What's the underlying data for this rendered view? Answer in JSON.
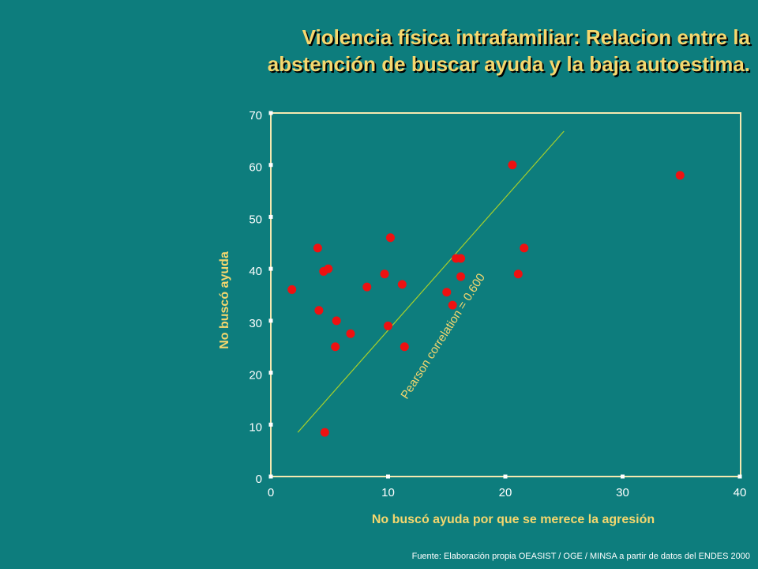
{
  "title": {
    "line1": "Violencia física intrafamiliar: Relacion entre la",
    "line2": "abstención de buscar ayuda y la baja autoestima."
  },
  "source": "Fuente: Elaboración propia OEASIST / OGE / MINSA a partir de datos del ENDES 2000",
  "chart_data": {
    "type": "scatter",
    "xlabel": "No buscó ayuda por que se merece la agresión",
    "ylabel": "No buscó ayuda",
    "xlim": [
      0,
      40
    ],
    "ylim": [
      0,
      70
    ],
    "xticks": [
      0,
      10,
      20,
      30,
      40
    ],
    "yticks": [
      0,
      10,
      20,
      30,
      40,
      50,
      60,
      70
    ],
    "grid": false,
    "colors": {
      "points": "#ee1111",
      "trend": "#a8d02a",
      "axis_text": "#f5d76e",
      "tick_text": "#ffffff",
      "frame": "#f5e9b0"
    },
    "series": [
      {
        "points": [
          [
            1.8,
            36.0
          ],
          [
            4.0,
            44.0
          ],
          [
            4.1,
            32.0
          ],
          [
            4.5,
            39.5
          ],
          [
            4.9,
            40.0
          ],
          [
            4.6,
            8.5
          ],
          [
            5.6,
            30.0
          ],
          [
            5.5,
            25.0
          ],
          [
            6.8,
            27.5
          ],
          [
            8.2,
            36.5
          ],
          [
            9.7,
            39.0
          ],
          [
            10.0,
            29.0
          ],
          [
            10.2,
            46.0
          ],
          [
            11.2,
            37.0
          ],
          [
            11.4,
            25.0
          ],
          [
            15.0,
            35.5
          ],
          [
            15.5,
            33.0
          ],
          [
            15.8,
            42.0
          ],
          [
            16.2,
            42.0
          ],
          [
            16.2,
            38.5
          ],
          [
            20.6,
            60.0
          ],
          [
            21.1,
            39.0
          ],
          [
            21.6,
            44.0
          ],
          [
            34.9,
            58.0
          ]
        ]
      }
    ],
    "trendline": {
      "x": [
        2.3,
        25.0
      ],
      "y": [
        8.5,
        66.5
      ]
    },
    "annotation": "Pearson correlation = 0.600"
  }
}
